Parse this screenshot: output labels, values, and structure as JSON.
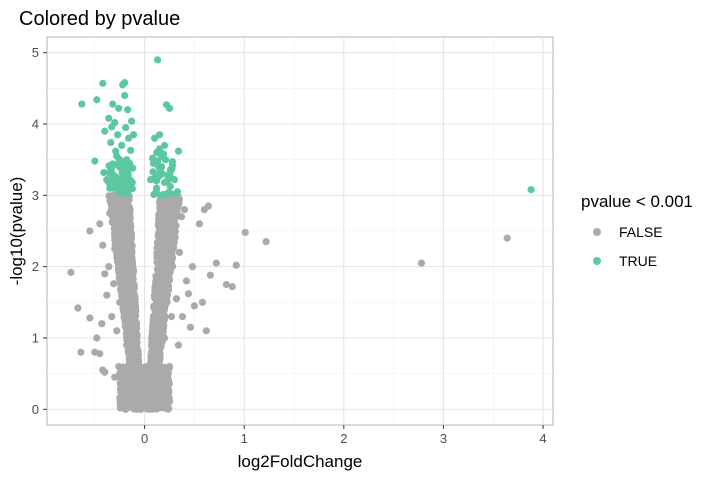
{
  "chart_data": {
    "type": "scatter",
    "title": "Colored by pvalue",
    "xlabel": "log2FoldChange",
    "ylabel": "-log10(pvalue)",
    "xlim": [
      -0.98,
      4.1
    ],
    "ylim": [
      -0.22,
      5.22
    ],
    "x_ticks": [
      0,
      1,
      2,
      3,
      4
    ],
    "y_ticks": [
      0,
      1,
      2,
      3,
      4,
      5
    ],
    "grid": true,
    "legend": {
      "title": "pvalue < 0.001",
      "position": "right",
      "entries": [
        {
          "label": "FALSE",
          "color": "#AAAAAA"
        },
        {
          "label": "TRUE",
          "color": "#5CC8A0"
        }
      ]
    },
    "series": [
      {
        "name": "FALSE",
        "color": "#AAAAAA",
        "note": "bulk of points: dense volcano cloud between x≈-0.3 and x≈0.3, y from 0 to 3",
        "points": [
          [
            -0.74,
            1.92
          ],
          [
            -0.67,
            1.42
          ],
          [
            -0.64,
            0.8
          ],
          [
            -0.55,
            1.28
          ],
          [
            -0.55,
            2.5
          ],
          [
            -0.5,
            0.8
          ],
          [
            -0.48,
            1.0
          ],
          [
            -0.45,
            0.78
          ],
          [
            -0.45,
            2.6
          ],
          [
            -0.43,
            1.2
          ],
          [
            -0.42,
            0.55
          ],
          [
            -0.42,
            2.3
          ],
          [
            -0.4,
            1.9
          ],
          [
            -0.4,
            0.52
          ],
          [
            -0.38,
            1.6
          ],
          [
            -0.36,
            2.0
          ],
          [
            -0.35,
            2.75
          ],
          [
            -0.33,
            1.3
          ],
          [
            -0.31,
            1.76
          ],
          [
            -0.3,
            2.25
          ],
          [
            -0.3,
            0.45
          ],
          [
            -0.28,
            1.1
          ],
          [
            -0.27,
            2.9
          ],
          [
            -0.26,
            0.6
          ],
          [
            -0.25,
            1.5
          ],
          [
            -0.23,
            2.1
          ],
          [
            -0.22,
            0.3
          ],
          [
            -0.2,
            2.6
          ],
          [
            -0.19,
            1.2
          ],
          [
            -0.18,
            0.9
          ],
          [
            0.15,
            2.9
          ],
          [
            0.18,
            2.2
          ],
          [
            0.2,
            1.0
          ],
          [
            0.22,
            1.7
          ],
          [
            0.24,
            2.4
          ],
          [
            0.25,
            0.6
          ],
          [
            0.27,
            1.3
          ],
          [
            0.28,
            2.0
          ],
          [
            0.3,
            2.55
          ],
          [
            0.32,
            1.55
          ],
          [
            0.34,
            0.9
          ],
          [
            0.35,
            2.2
          ],
          [
            0.37,
            2.7
          ],
          [
            0.38,
            1.3
          ],
          [
            0.4,
            2.8
          ],
          [
            0.42,
            1.8
          ],
          [
            0.44,
            1.62
          ],
          [
            0.46,
            1.15
          ],
          [
            0.48,
            2.0
          ],
          [
            0.5,
            1.45
          ],
          [
            0.55,
            2.6
          ],
          [
            0.58,
            1.5
          ],
          [
            0.6,
            2.8
          ],
          [
            0.62,
            1.1
          ],
          [
            0.64,
            2.85
          ],
          [
            0.66,
            1.88
          ],
          [
            0.72,
            2.05
          ],
          [
            0.82,
            1.75
          ],
          [
            0.88,
            1.72
          ],
          [
            0.92,
            2.02
          ],
          [
            1.01,
            2.48
          ],
          [
            1.22,
            2.35
          ],
          [
            2.78,
            2.05
          ],
          [
            3.64,
            2.4
          ]
        ]
      },
      {
        "name": "TRUE",
        "color": "#5CC8A0",
        "points": [
          [
            -0.63,
            4.28
          ],
          [
            -0.5,
            3.48
          ],
          [
            -0.48,
            4.34
          ],
          [
            -0.42,
            4.57
          ],
          [
            -0.41,
            3.32
          ],
          [
            -0.4,
            3.9
          ],
          [
            -0.38,
            3.22
          ],
          [
            -0.36,
            4.08
          ],
          [
            -0.35,
            3.1
          ],
          [
            -0.34,
            3.74
          ],
          [
            -0.33,
            3.96
          ],
          [
            -0.32,
            4.28
          ],
          [
            -0.31,
            3.42
          ],
          [
            -0.3,
            4.02
          ],
          [
            -0.29,
            3.62
          ],
          [
            -0.28,
            3.25
          ],
          [
            -0.27,
            3.85
          ],
          [
            -0.26,
            4.22
          ],
          [
            -0.25,
            3.5
          ],
          [
            -0.24,
            3.08
          ],
          [
            -0.23,
            3.7
          ],
          [
            -0.22,
            4.55
          ],
          [
            -0.21,
            3.3
          ],
          [
            -0.2,
            4.58
          ],
          [
            -0.2,
            4.4
          ],
          [
            -0.19,
            3.95
          ],
          [
            -0.18,
            3.5
          ],
          [
            -0.17,
            4.2
          ],
          [
            -0.16,
            3.8
          ],
          [
            -0.15,
            3.2
          ],
          [
            -0.14,
            3.63
          ],
          [
            -0.13,
            4.04
          ],
          [
            -0.12,
            3.38
          ],
          [
            -0.11,
            3.85
          ],
          [
            -0.26,
            3.05
          ],
          [
            -0.33,
            3.15
          ],
          [
            -0.22,
            3.4
          ],
          [
            -0.18,
            3.02
          ],
          [
            -0.28,
            3.55
          ],
          [
            -0.15,
            3.45
          ],
          [
            0.06,
            3.22
          ],
          [
            0.08,
            3.52
          ],
          [
            0.1,
            3.8
          ],
          [
            0.12,
            3.1
          ],
          [
            0.13,
            4.9
          ],
          [
            0.14,
            3.4
          ],
          [
            0.15,
            3.65
          ],
          [
            0.16,
            3.0
          ],
          [
            0.17,
            3.55
          ],
          [
            0.18,
            3.3
          ],
          [
            0.19,
            3.58
          ],
          [
            0.2,
            3.18
          ],
          [
            0.21,
            3.5
          ],
          [
            0.22,
            4.27
          ],
          [
            0.24,
            3.04
          ],
          [
            0.25,
            4.22
          ],
          [
            0.26,
            3.36
          ],
          [
            0.28,
            3.42
          ],
          [
            0.3,
            3.22
          ],
          [
            0.33,
            3.05
          ],
          [
            0.34,
            3.62
          ],
          [
            0.15,
            3.85
          ],
          [
            0.2,
            3.7
          ],
          [
            0.12,
            3.6
          ],
          [
            3.88,
            3.08
          ]
        ]
      }
    ]
  }
}
